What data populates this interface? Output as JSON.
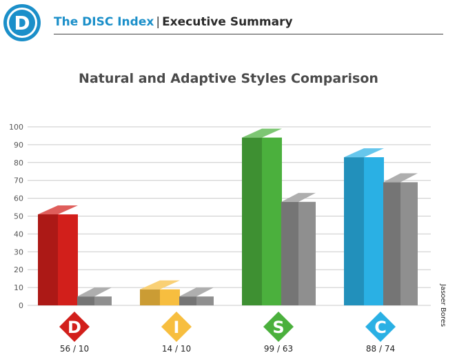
{
  "header": {
    "logo_letter": "D",
    "brand": "The DISC Index",
    "separator": "|",
    "section": "Executive Summary"
  },
  "side_label": "Jasoer Bores",
  "colors": {
    "brand_blue": "#1b8fc9",
    "D": "#d21f1b",
    "I": "#f7be3f",
    "S": "#4bb03d",
    "C": "#2ab0e4",
    "adaptive_gray": "#8f8f8f"
  },
  "chart_data": {
    "type": "bar",
    "title": "Natural and Adaptive Styles Comparison",
    "categories": [
      "D",
      "I",
      "S",
      "C"
    ],
    "series": [
      {
        "values": [
          56,
          14,
          99,
          88
        ]
      },
      {
        "values": [
          10,
          10,
          63,
          74
        ]
      }
    ],
    "value_labels": [
      "56 / 10",
      "14 / 10",
      "99 / 63",
      "88 / 74"
    ],
    "yticks": [
      0,
      10,
      20,
      30,
      40,
      50,
      60,
      70,
      80,
      90,
      100
    ],
    "ylim": [
      0,
      100
    ],
    "grid": true
  }
}
